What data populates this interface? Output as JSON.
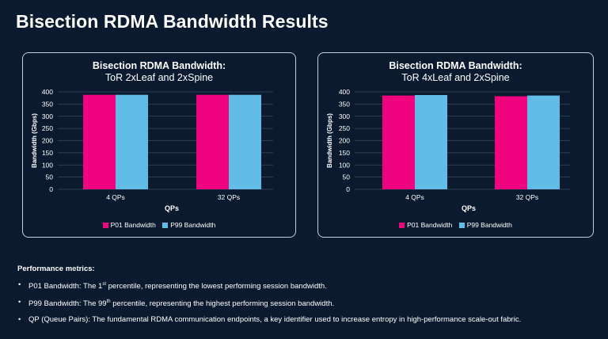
{
  "page_title": "Bisection RDMA Bandwidth Results",
  "colors": {
    "p01": "#f0037f",
    "p99": "#62bde6",
    "background": "#0b1a2e"
  },
  "chart_data": [
    {
      "type": "bar",
      "title": "Bisection RDMA Bandwidth:",
      "subtitle": "ToR 2xLeaf and 2xSpine",
      "xlabel": "QPs",
      "ylabel": "Bandwidth (Gbps)",
      "ylim": [
        0,
        400
      ],
      "yticks": [
        "400",
        "350",
        "300",
        "250",
        "200",
        "150",
        "100",
        "50",
        "0"
      ],
      "grid": true,
      "legend_position": "bottom",
      "categories": [
        "4 QPs",
        "32 QPs"
      ],
      "series": [
        {
          "name": "P01 Bandwidth",
          "values": [
            388,
            388
          ]
        },
        {
          "name": "P99 Bandwidth",
          "values": [
            388,
            388
          ]
        }
      ]
    },
    {
      "type": "bar",
      "title": "Bisection RDMA Bandwidth:",
      "subtitle": "ToR 4xLeaf and 2xSpine",
      "xlabel": "QPs",
      "ylabel": "Bandwidth (Gbps)",
      "ylim": [
        0,
        400
      ],
      "yticks": [
        "400",
        "350",
        "300",
        "250",
        "200",
        "150",
        "100",
        "50",
        "0"
      ],
      "grid": true,
      "legend_position": "bottom",
      "categories": [
        "4 QPs",
        "32 QPs"
      ],
      "series": [
        {
          "name": "P01 Bandwidth",
          "values": [
            385,
            382
          ]
        },
        {
          "name": "P99 Bandwidth",
          "values": [
            387,
            385
          ]
        }
      ]
    }
  ],
  "metrics": {
    "heading": "Performance metrics:",
    "p01": {
      "prefix": "P01 Bandwidth: The 1",
      "sup": "st",
      "suffix": " percentile, representing the lowest performing session bandwidth."
    },
    "p99": {
      "prefix": "P99 Bandwidth: The 99",
      "sup": "th",
      "suffix": " percentile, representing the highest performing session bandwidth."
    },
    "qp": "QP (Queue Pairs): The fundamental RDMA communication endpoints, a key identifier used to increase entropy in high-performance scale-out fabric."
  }
}
